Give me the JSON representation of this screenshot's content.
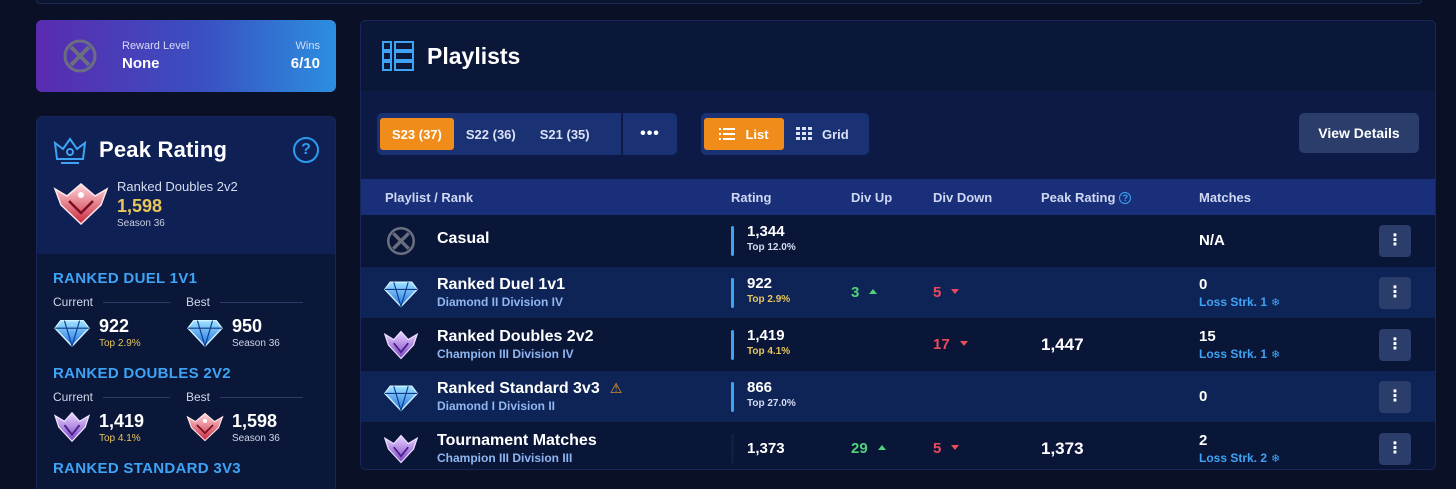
{
  "reward": {
    "level_label": "Reward Level",
    "level_value": "None",
    "wins_label": "Wins",
    "wins_value": "6/10"
  },
  "peak": {
    "title": "Peak Rating",
    "help": "?",
    "best_playlist": "Ranked Doubles 2v2",
    "best_value": "1,598",
    "best_season": "Season 36",
    "sections": [
      {
        "title": "RANKED DUEL 1V1",
        "current_label": "Current",
        "best_label": "Best",
        "current_value": "922",
        "current_sub": "Top 2.9%",
        "best_value": "950",
        "best_sub": "Season 36"
      },
      {
        "title": "RANKED DOUBLES 2V2",
        "current_label": "Current",
        "best_label": "Best",
        "current_value": "1,419",
        "current_sub": "Top 4.1%",
        "best_value": "1,598",
        "best_sub": "Season 36"
      },
      {
        "title": "RANKED STANDARD 3V3"
      }
    ]
  },
  "playlists": {
    "title": "Playlists",
    "seasons": [
      "S23 (37)",
      "S22 (36)",
      "S21 (35)"
    ],
    "more": "•••",
    "view_list": "List",
    "view_grid": "Grid",
    "view_details": "View Details",
    "headers": {
      "playlist": "Playlist / Rank",
      "rating": "Rating",
      "div_up": "Div Up",
      "div_down": "Div Down",
      "peak": "Peak Rating",
      "matches": "Matches"
    },
    "rows": [
      {
        "name": "Casual",
        "division": "",
        "rating": "1,344",
        "top": "Top 12.0%",
        "div_up": "",
        "div_down": "",
        "peak": "",
        "matches": "N/A",
        "streak": ""
      },
      {
        "name": "Ranked Duel 1v1",
        "division": "Diamond II Division IV",
        "rating": "922",
        "top": "Top 2.9%",
        "div_up": "3",
        "div_down": "5",
        "peak": "",
        "matches": "0",
        "streak": "Loss Strk. 1"
      },
      {
        "name": "Ranked Doubles 2v2",
        "division": "Champion III Division IV",
        "rating": "1,419",
        "top": "Top 4.1%",
        "div_up": "",
        "div_down": "17",
        "peak": "1,447",
        "matches": "15",
        "streak": "Loss Strk. 1"
      },
      {
        "name": "Ranked Standard 3v3",
        "division": "Diamond I Division II",
        "rating": "866",
        "top": "Top 27.0%",
        "div_up": "",
        "div_down": "",
        "peak": "",
        "matches": "0",
        "streak": ""
      },
      {
        "name": "Tournament Matches",
        "division": "Champion III Division III",
        "rating": "1,373",
        "top": "",
        "div_up": "29",
        "div_down": "5",
        "peak": "1,373",
        "matches": "2",
        "streak": "Loss Strk. 2"
      }
    ],
    "kebab": "⋮"
  },
  "colors": {
    "accent_orange": "#f08c1a",
    "accent_blue": "#3fa3f5",
    "gold": "#e8c659",
    "up_green": "#4fd27a",
    "down_red": "#ea4b5e"
  },
  "icons": {
    "unranked": "unranked-x-icon",
    "diamond": "diamond-rank-icon",
    "champion": "champion-rank-icon",
    "grand_champ": "grand-champion-rank-icon"
  }
}
